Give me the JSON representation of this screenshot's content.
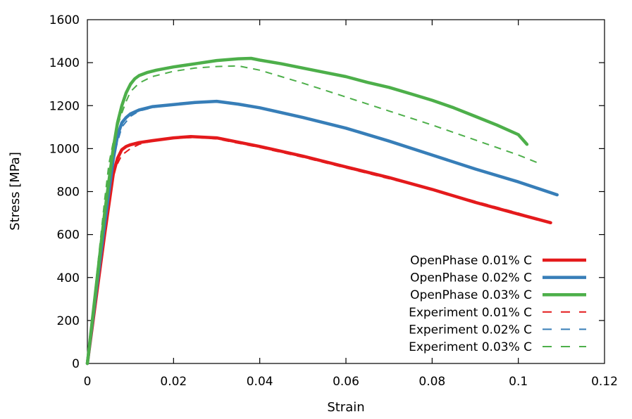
{
  "chart_data": {
    "type": "line",
    "xlabel": "Strain",
    "ylabel": "Stress [MPa]",
    "xlim": [
      0,
      0.12
    ],
    "ylim": [
      0,
      1600
    ],
    "xticks": [
      0,
      0.02,
      0.04,
      0.06,
      0.08,
      0.1,
      0.12
    ],
    "xtick_labels": [
      "0",
      "0.02",
      "0.04",
      "0.06",
      "0.08",
      "0.1",
      "0.12"
    ],
    "yticks": [
      0,
      200,
      400,
      600,
      800,
      1000,
      1200,
      1400,
      1600
    ],
    "ytick_labels": [
      "0",
      "200",
      "400",
      "600",
      "800",
      "1000",
      "1200",
      "1400",
      "1600"
    ],
    "grid": false,
    "legend_position": "bottom-right",
    "series": [
      {
        "name": "OpenPhase 0.01% C",
        "style": "solid",
        "color": "#e41a1c",
        "x": [
          0,
          0.002,
          0.004,
          0.006,
          0.007,
          0.008,
          0.009,
          0.01,
          0.012,
          0.015,
          0.02,
          0.024,
          0.03,
          0.04,
          0.05,
          0.06,
          0.07,
          0.08,
          0.09,
          0.1,
          0.1075
        ],
        "y": [
          0,
          300,
          600,
          880,
          955,
          995,
          1010,
          1018,
          1028,
          1037,
          1050,
          1056,
          1050,
          1010,
          965,
          915,
          865,
          810,
          750,
          695,
          655
        ]
      },
      {
        "name": "OpenPhase 0.02% C",
        "style": "solid",
        "color": "#377eb8",
        "x": [
          0,
          0.002,
          0.004,
          0.006,
          0.007,
          0.008,
          0.009,
          0.01,
          0.012,
          0.015,
          0.02,
          0.025,
          0.03,
          0.035,
          0.04,
          0.05,
          0.06,
          0.07,
          0.08,
          0.09,
          0.1,
          0.109
        ],
        "y": [
          0,
          330,
          650,
          950,
          1060,
          1120,
          1145,
          1162,
          1180,
          1195,
          1205,
          1215,
          1220,
          1207,
          1190,
          1145,
          1095,
          1035,
          970,
          905,
          845,
          785
        ]
      },
      {
        "name": "OpenPhase 0.03% C",
        "style": "solid",
        "color": "#4daf4a",
        "x": [
          0,
          0.002,
          0.004,
          0.006,
          0.007,
          0.008,
          0.009,
          0.01,
          0.011,
          0.012,
          0.014,
          0.016,
          0.02,
          0.025,
          0.03,
          0.035,
          0.038,
          0.04,
          0.045,
          0.05,
          0.055,
          0.06,
          0.065,
          0.07,
          0.075,
          0.08,
          0.085,
          0.09,
          0.095,
          0.1,
          0.102
        ],
        "y": [
          0,
          350,
          700,
          1000,
          1120,
          1200,
          1260,
          1300,
          1325,
          1340,
          1355,
          1365,
          1380,
          1395,
          1410,
          1418,
          1420,
          1412,
          1395,
          1375,
          1355,
          1335,
          1308,
          1285,
          1255,
          1225,
          1190,
          1150,
          1110,
          1065,
          1020
        ]
      },
      {
        "name": "Experiment 0.01% C",
        "style": "dashed",
        "color": "#e41a1c",
        "x": [
          0,
          0.002,
          0.004,
          0.006,
          0.008,
          0.01,
          0.012,
          0.015,
          0.02,
          0.025,
          0.03,
          0.04,
          0.05,
          0.06,
          0.07,
          0.08,
          0.09,
          0.1,
          0.105
        ],
        "y": [
          0,
          320,
          640,
          890,
          970,
          1000,
          1020,
          1035,
          1048,
          1052,
          1045,
          1005,
          960,
          910,
          860,
          810,
          755,
          700,
          670
        ]
      },
      {
        "name": "Experiment 0.02% C",
        "style": "dashed",
        "color": "#377eb8",
        "x": [
          0,
          0.002,
          0.004,
          0.006,
          0.008,
          0.01,
          0.012,
          0.015,
          0.02,
          0.025,
          0.03,
          0.035,
          0.04,
          0.05,
          0.06,
          0.07,
          0.08,
          0.09,
          0.1,
          0.105
        ],
        "y": [
          0,
          340,
          670,
          960,
          1100,
          1150,
          1175,
          1190,
          1208,
          1218,
          1220,
          1210,
          1190,
          1145,
          1095,
          1035,
          970,
          905,
          845,
          815
        ]
      },
      {
        "name": "Experiment 0.03% C",
        "style": "dashed",
        "color": "#4daf4a",
        "x": [
          0,
          0.002,
          0.004,
          0.005,
          0.006,
          0.007,
          0.008,
          0.009,
          0.01,
          0.012,
          0.015,
          0.02,
          0.025,
          0.03,
          0.035,
          0.04,
          0.05,
          0.06,
          0.07,
          0.08,
          0.09,
          0.1,
          0.105
        ],
        "y": [
          0,
          380,
          760,
          930,
          1030,
          1105,
          1165,
          1220,
          1265,
          1305,
          1335,
          1360,
          1375,
          1382,
          1385,
          1365,
          1305,
          1240,
          1175,
          1110,
          1040,
          970,
          930
        ]
      }
    ]
  }
}
